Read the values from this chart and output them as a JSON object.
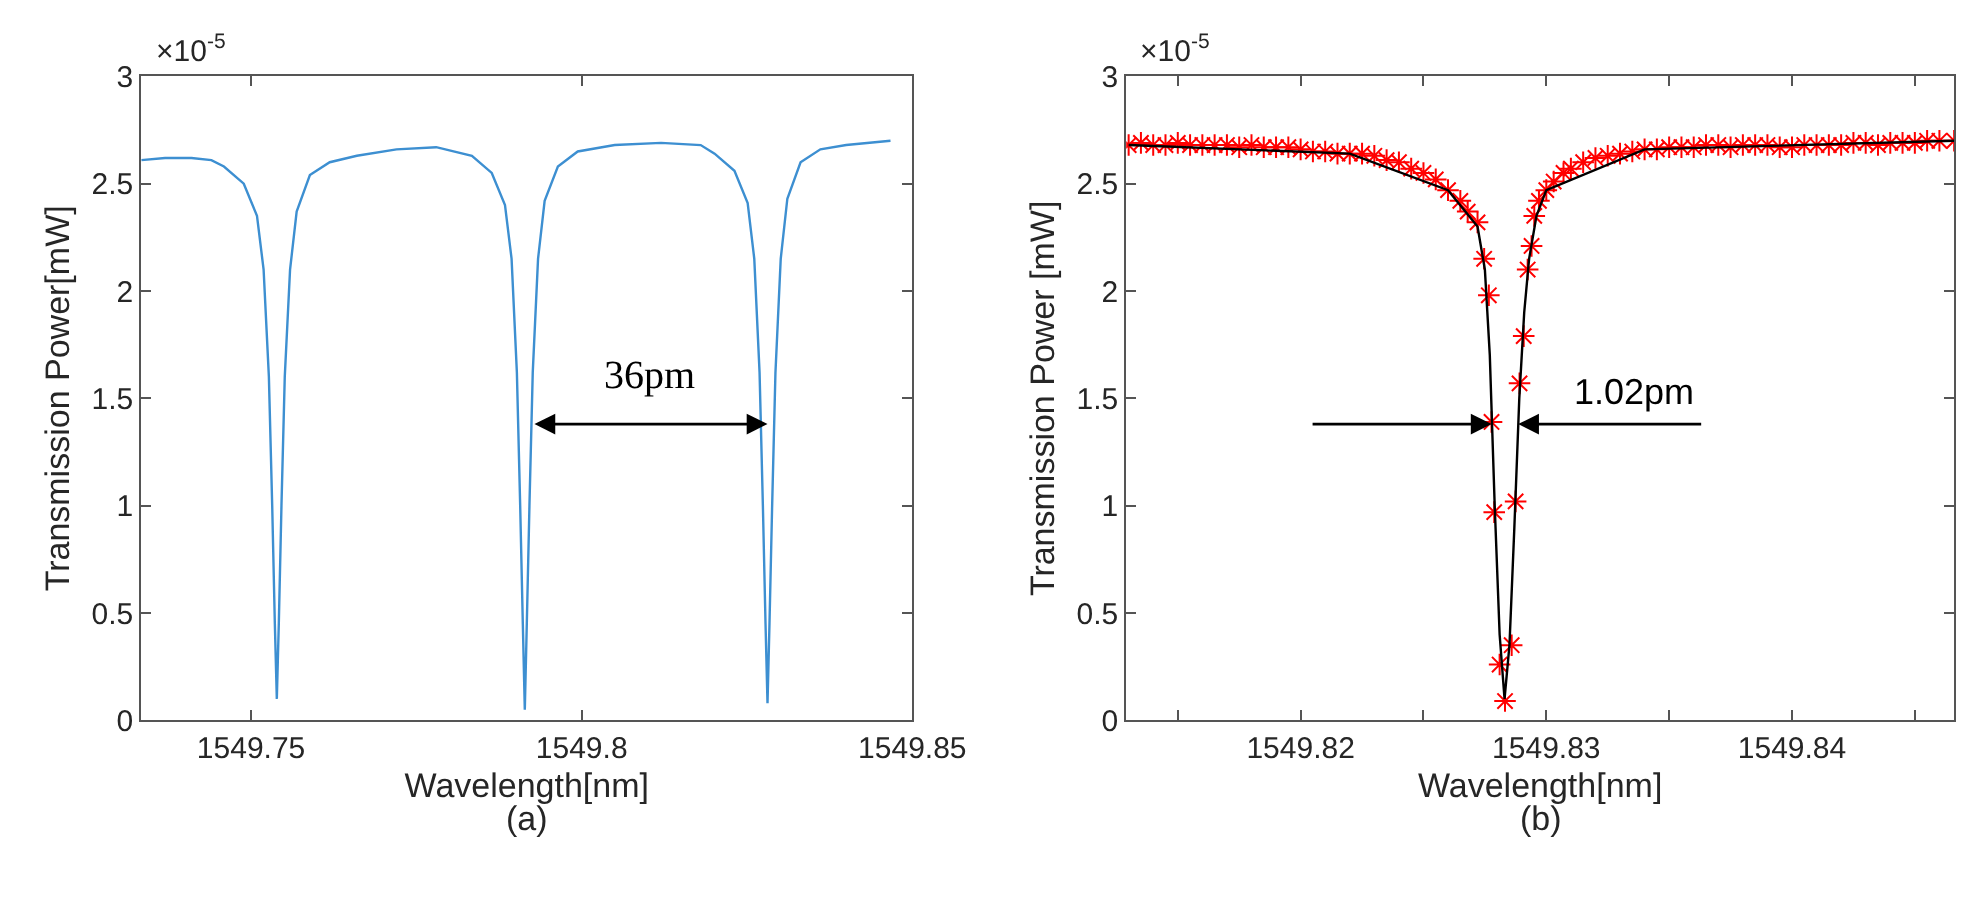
{
  "chart_data": [
    {
      "type": "line",
      "xlabel": "Wavelength[nm]",
      "ylabel": "Transmission Power[mW]",
      "color": "#3d8fd1",
      "x": [
        1549.7334,
        1549.737,
        1549.741,
        1549.744,
        1549.7459,
        1549.7489,
        1549.7509,
        1549.7519,
        1549.7527,
        1549.7532,
        1549.7536,
        1549.7539,
        1549.7542,
        1549.7546,
        1549.7551,
        1549.7559,
        1549.7569,
        1549.7589,
        1549.7619,
        1549.766,
        1549.772,
        1549.778,
        1549.7834,
        1549.7864,
        1549.7884,
        1549.7894,
        1549.7902,
        1549.7907,
        1549.7911,
        1549.7914,
        1549.7917,
        1549.7921,
        1549.7926,
        1549.7934,
        1549.7944,
        1549.7964,
        1549.7994,
        1549.805,
        1549.812,
        1549.818,
        1549.8201,
        1549.8231,
        1549.8251,
        1549.8261,
        1549.8269,
        1549.8274,
        1549.8278,
        1549.8281,
        1549.8284,
        1549.8288,
        1549.8293,
        1549.8301,
        1549.8311,
        1549.8331,
        1549.8361,
        1549.84,
        1549.8467
      ],
      "values": [
        2.61,
        2.62,
        2.62,
        2.61,
        2.58,
        2.5,
        2.35,
        2.1,
        1.6,
        1.0,
        0.45,
        0.1,
        0.45,
        1.0,
        1.6,
        2.1,
        2.37,
        2.54,
        2.6,
        2.63,
        2.66,
        2.67,
        2.63,
        2.55,
        2.4,
        2.15,
        1.62,
        1.0,
        0.45,
        0.05,
        0.45,
        1.0,
        1.62,
        2.15,
        2.42,
        2.58,
        2.65,
        2.68,
        2.69,
        2.68,
        2.64,
        2.56,
        2.41,
        2.15,
        1.62,
        1.0,
        0.45,
        0.08,
        0.45,
        1.0,
        1.62,
        2.15,
        2.43,
        2.6,
        2.66,
        2.68,
        2.7
      ],
      "xlim": [
        1549.7334,
        1549.85
      ],
      "xticks": [
        1549.75,
        1549.8,
        1549.85
      ],
      "ylim": [
        0,
        3
      ],
      "yticks": [
        0,
        0.5,
        1,
        1.5,
        2,
        2.5,
        3
      ],
      "annotations": [
        "×10$^{-5}$",
        "(a)",
        {
          "text": "36pm",
          "x": 1549.8281,
          "y": 1.38
        }
      ]
    },
    {
      "type": "scatter",
      "xlabel": "Wavelength[nm]",
      "ylabel": "Transmission Power [mW]",
      "series": [
        {
          "type": "scatter",
          "color": "#ff0000",
          "marker": "cross",
          "x": [
            1549.813,
            1549.8135,
            1549.814,
            1549.8145,
            1549.815,
            1549.8155,
            1549.816,
            1549.8165,
            1549.817,
            1549.8175,
            1549.818,
            1549.8185,
            1549.819,
            1549.8195,
            1549.82,
            1549.8205,
            1549.821,
            1549.8215,
            1549.822,
            1549.8225,
            1549.823,
            1549.8235,
            1549.824,
            1549.8245,
            1549.825,
            1549.8255,
            1549.826,
            1549.8265,
            1549.8268,
            1549.8272,
            1549.82747,
            1549.82766,
            1549.82777,
            1549.82788,
            1549.8281,
            1549.82832,
            1549.82859,
            1549.82875,
            1549.82891,
            1549.82908,
            1549.82924,
            1549.8294,
            1549.82951,
            1549.8297,
            1549.83,
            1549.8303,
            1549.8307,
            1549.831,
            1549.8315,
            1549.832,
            1549.8325,
            1549.833,
            1549.8335,
            1549.834,
            1549.8345,
            1549.835,
            1549.8355,
            1549.836,
            1549.8365,
            1549.837,
            1549.8375,
            1549.838,
            1549.8385,
            1549.839,
            1549.8395,
            1549.84,
            1549.8405,
            1549.841,
            1549.8415,
            1549.842,
            1549.8425,
            1549.843,
            1549.8435,
            1549.844,
            1549.8445,
            1549.845,
            1549.8455,
            1549.846,
            1549.8466
          ],
          "values": [
            2.68,
            2.69,
            2.68,
            2.68,
            2.69,
            2.68,
            2.68,
            2.68,
            2.68,
            2.67,
            2.68,
            2.67,
            2.67,
            2.67,
            2.66,
            2.65,
            2.65,
            2.64,
            2.64,
            2.64,
            2.63,
            2.61,
            2.6,
            2.57,
            2.55,
            2.52,
            2.47,
            2.42,
            2.37,
            2.32,
            2.15,
            1.98,
            1.39,
            0.97,
            0.26,
            0.09,
            0.35,
            1.02,
            1.57,
            1.79,
            2.1,
            2.21,
            2.35,
            2.42,
            2.47,
            2.51,
            2.55,
            2.57,
            2.6,
            2.62,
            2.63,
            2.64,
            2.65,
            2.66,
            2.66,
            2.67,
            2.67,
            2.67,
            2.68,
            2.68,
            2.67,
            2.68,
            2.68,
            2.68,
            2.67,
            2.67,
            2.68,
            2.68,
            2.68,
            2.68,
            2.69,
            2.69,
            2.68,
            2.69,
            2.69,
            2.69,
            2.7,
            2.7,
            2.7
          ]
        },
        {
          "type": "line",
          "color": "#000000",
          "x": [
            1549.813,
            1549.822,
            1549.826,
            1549.8272,
            1549.8275,
            1549.8277,
            1549.8279,
            1549.8281,
            1549.8283,
            1549.8285,
            1549.8287,
            1549.8289,
            1549.8291,
            1549.8293,
            1549.8296,
            1549.83,
            1549.834,
            1549.8466
          ],
          "values": [
            2.68,
            2.64,
            2.47,
            2.3,
            2.1,
            1.7,
            1.0,
            0.4,
            0.1,
            0.35,
            0.9,
            1.5,
            1.9,
            2.15,
            2.35,
            2.47,
            2.66,
            2.7
          ]
        }
      ],
      "xlim": [
        1549.8129,
        1549.8466
      ],
      "xticks": [
        {
          "value": 1549.815,
          "label": null
        },
        1549.82,
        {
          "value": 1549.825,
          "label": null
        },
        1549.83,
        {
          "value": 1549.835,
          "label": null
        },
        1549.84,
        {
          "value": 1549.845,
          "label": null
        }
      ],
      "ylim": [
        0,
        3
      ],
      "yticks": [
        0,
        0.5,
        1,
        1.5,
        2,
        2.5,
        3
      ],
      "annotations": [
        "×10$^{-5}$",
        "(b)",
        {
          "text": "1.02pm",
          "x": 1549.8282,
          "y": 1.38
        }
      ]
    }
  ]
}
